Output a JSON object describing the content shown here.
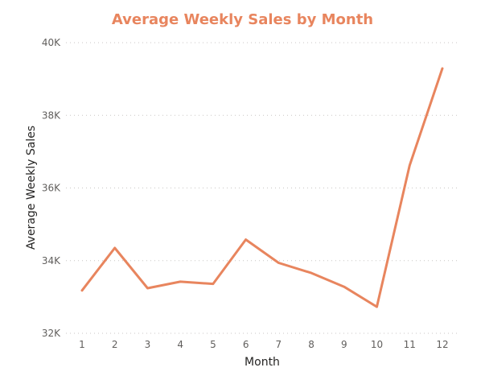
{
  "colors": {
    "series": "#e8855e",
    "title": "#e8855e",
    "grid": "#c8c6c4"
  },
  "chart_data": {
    "type": "line",
    "title": "Average Weekly Sales by Month",
    "xlabel": "Month",
    "ylabel": "Average Weekly Sales",
    "x": [
      1,
      2,
      3,
      4,
      5,
      6,
      7,
      8,
      9,
      10,
      11,
      12
    ],
    "x_tick_labels": [
      "1",
      "2",
      "3",
      "4",
      "5",
      "6",
      "7",
      "8",
      "9",
      "10",
      "11",
      "12"
    ],
    "values": [
      33180,
      34350,
      33240,
      33420,
      33360,
      34580,
      33940,
      33660,
      33280,
      32730,
      36620,
      39290
    ],
    "ylim": [
      32000,
      40000
    ],
    "y_ticks": [
      32000,
      34000,
      36000,
      38000,
      40000
    ],
    "y_tick_labels": [
      "32K",
      "34K",
      "36K",
      "38K",
      "40K"
    ],
    "grid": "horizontal dotted",
    "legend": "none"
  }
}
